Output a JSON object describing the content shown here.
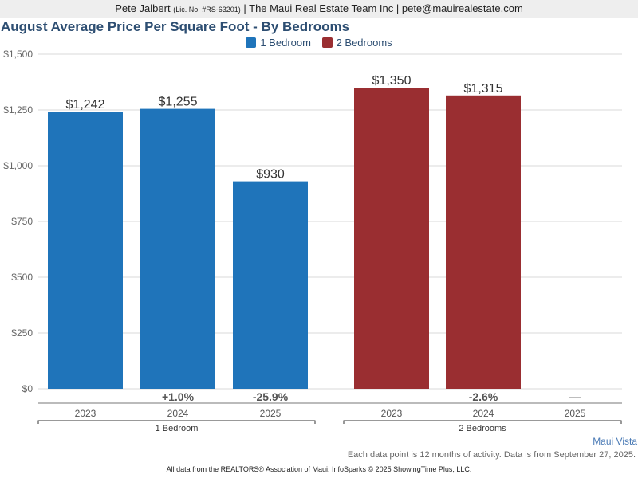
{
  "header": {
    "agent_name": "Pete Jalbert",
    "license": "(Lic. No. #RS-63201)",
    "rest": "| The Maui Real Estate Team Inc | pete@mauirealestate.com"
  },
  "colors": {
    "one_bedroom": "#1f74ba",
    "two_bedrooms": "#9a2e31"
  },
  "chart_data": {
    "type": "bar",
    "title": "August Average Price Per Square Foot - By Bedrooms",
    "xlabel": "",
    "ylabel": "",
    "ylim": [
      0,
      1500
    ],
    "yticks": [
      0,
      250,
      500,
      750,
      1000,
      1250,
      1500
    ],
    "ytick_labels": [
      "$0",
      "$250",
      "$500",
      "$750",
      "$1,000",
      "$1,250",
      "$1,500"
    ],
    "grid": true,
    "legend_position": "top-center",
    "legend": [
      "1 Bedroom",
      "2 Bedrooms"
    ],
    "groups": [
      {
        "name": "1 Bedroom",
        "categories": [
          "2023",
          "2024",
          "2025"
        ],
        "values": [
          1242,
          1255,
          930
        ],
        "value_labels": [
          "$1,242",
          "$1,255",
          "$930"
        ],
        "change_labels": [
          "",
          "+1.0%",
          "-25.9%"
        ]
      },
      {
        "name": "2 Bedrooms",
        "categories": [
          "2023",
          "2024",
          "2025"
        ],
        "values": [
          1350,
          1315,
          null
        ],
        "value_labels": [
          "$1,350",
          "$1,315",
          ""
        ],
        "change_labels": [
          "",
          "-2.6%",
          "—"
        ]
      }
    ]
  },
  "source_name": "Maui Vista",
  "note": "Each data point is 12 months of activity. Data is from September 27, 2025.",
  "footer": "All data from the REALTORS® Association of Maui. InfoSparks © 2025 ShowingTime Plus, LLC."
}
